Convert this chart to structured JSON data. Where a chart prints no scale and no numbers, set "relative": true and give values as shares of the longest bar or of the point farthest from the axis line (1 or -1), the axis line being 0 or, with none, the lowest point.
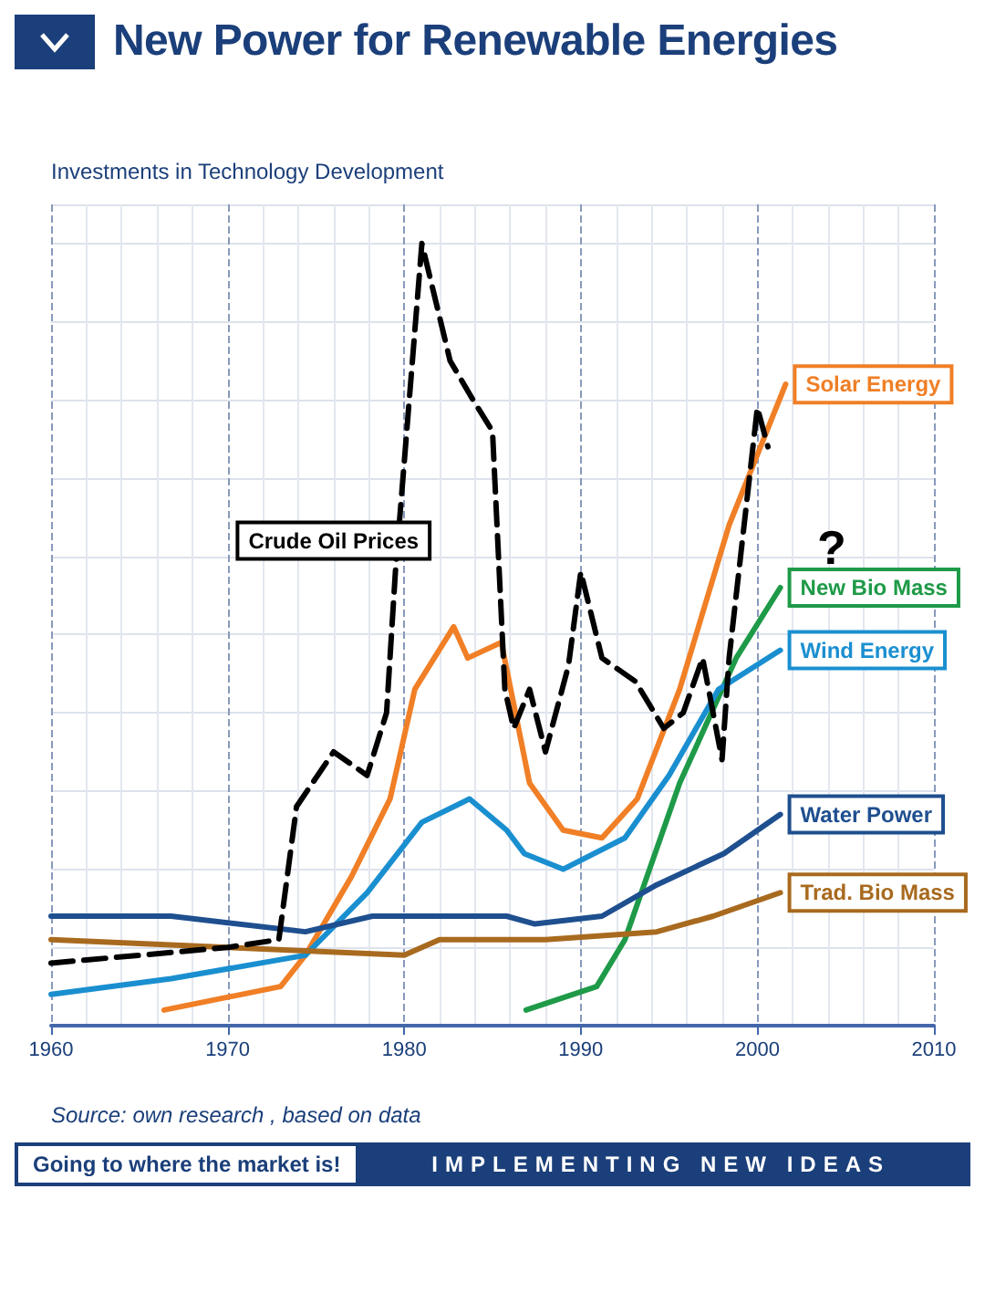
{
  "chart_data": {
    "type": "line",
    "title": "New Power for Renewable Energies",
    "ylabel": "Investments in Technology Development",
    "relative": true,
    "xlim": [
      1960,
      2010
    ],
    "xticks": [
      1960,
      1970,
      1980,
      1990,
      2000,
      2010
    ],
    "grid": true,
    "legend": false,
    "marker": "none",
    "line_style": "solid",
    "annotations": [
      "?",
      "Source: own research , based on data",
      "Going to where the market is!",
      "IMPLEMENTING NEW IDEAS"
    ],
    "series": [
      {
        "name": "Crude Oil Prices",
        "color": "#000000",
        "line_style": "dashed",
        "x": [
          1960,
          1965,
          1970,
          1972.9,
          1973.9,
          1976,
          1977.9,
          1979,
          1979.5,
          1981,
          1982.6,
          1983.9,
          1985,
          1985.7,
          1986.2,
          1987.1,
          1988,
          1989.3,
          1990,
          1991.2,
          1993.1,
          1994.7,
          1995.8,
          1996.9,
          1998,
          1998.4,
          1999.4,
          2000,
          2000.6
        ],
        "values": [
          0.08,
          0.09,
          0.1,
          0.11,
          0.28,
          0.35,
          0.32,
          0.4,
          0.58,
          1,
          0.85,
          0.8,
          0.76,
          0.43,
          0.38,
          0.43,
          0.35,
          0.46,
          0.58,
          0.47,
          0.44,
          0.38,
          0.4,
          0.47,
          0.34,
          0.47,
          0.67,
          0.79,
          0.74
        ]
      },
      {
        "name": "Solar Energy",
        "color": "#f07f26",
        "x": [
          1966.4,
          1973,
          1974.4,
          1977,
          1979.2,
          1980.6,
          1982.8,
          1983.6,
          1985.5,
          1987.1,
          1989,
          1991.2,
          1993.2,
          1995.6,
          1998.4,
          2001.6
        ],
        "values": [
          0.02,
          0.05,
          0.09,
          0.19,
          0.29,
          0.43,
          0.51,
          0.47,
          0.49,
          0.31,
          0.25,
          0.24,
          0.29,
          0.43,
          0.64,
          0.82
        ]
      },
      {
        "name": "New Bio Mass",
        "color": "#1e9a48",
        "x": [
          1986.9,
          1990.9,
          1992.5,
          1995.6,
          1998.8,
          2001.3
        ],
        "values": [
          0.02,
          0.05,
          0.11,
          0.31,
          0.47,
          0.56
        ]
      },
      {
        "name": "Wind Energy",
        "color": "#1a8fd0",
        "x": [
          1960,
          1966.8,
          1974.4,
          1977.9,
          1981,
          1983.7,
          1985.8,
          1986.8,
          1989,
          1992.5,
          1995,
          1997.8,
          2001.3
        ],
        "values": [
          0.04,
          0.06,
          0.09,
          0.17,
          0.26,
          0.29,
          0.25,
          0.22,
          0.2,
          0.24,
          0.32,
          0.43,
          0.48
        ]
      },
      {
        "name": "Water Power",
        "color": "#1e4f8f",
        "x": [
          1960,
          1966.8,
          1974.4,
          1978.2,
          1985.8,
          1987.4,
          1991.2,
          1994.3,
          1998.1,
          2001.3
        ],
        "values": [
          0.14,
          0.14,
          0.12,
          0.14,
          0.14,
          0.13,
          0.14,
          0.18,
          0.22,
          0.27
        ]
      },
      {
        "name": "Trad. Bio Mass",
        "color": "#a86a1e",
        "x": [
          1960,
          1970,
          1980,
          1982,
          1988,
          1994.3,
          1997.5,
          2001.3
        ],
        "values": [
          0.11,
          0.1,
          0.09,
          0.11,
          0.11,
          0.12,
          0.14,
          0.17
        ]
      }
    ]
  }
}
